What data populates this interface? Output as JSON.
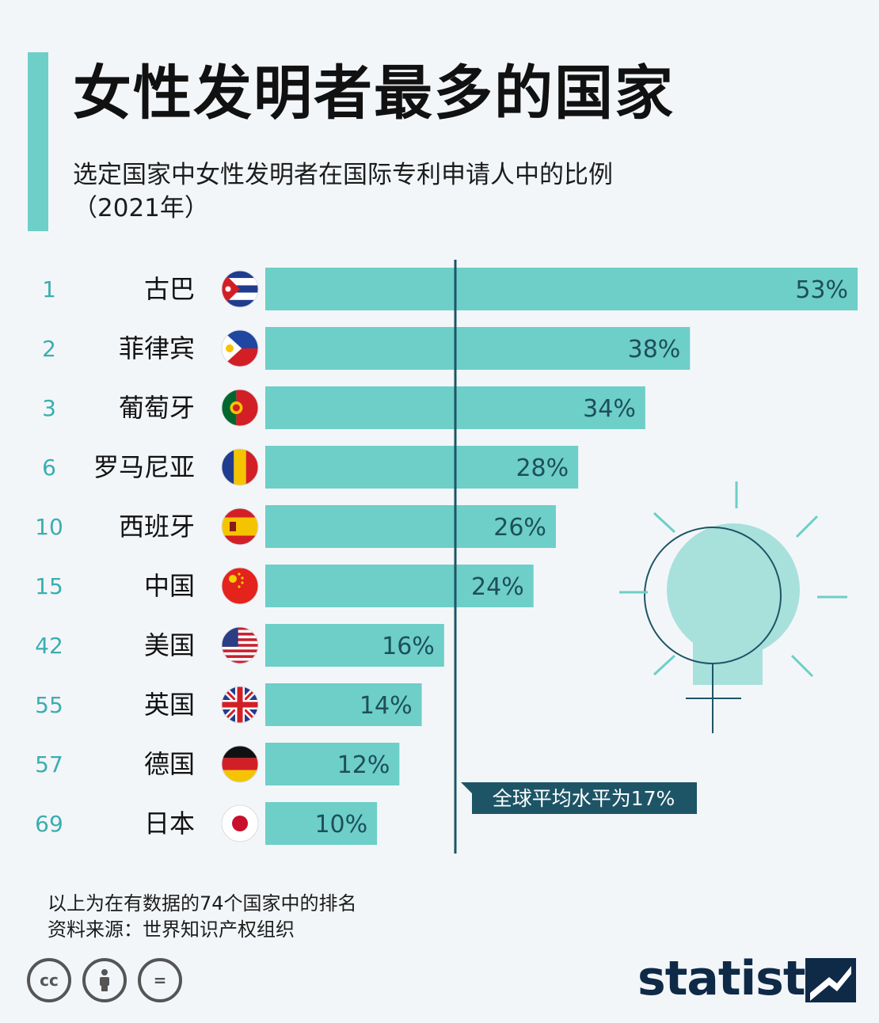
{
  "title": "女性发明者最多的国家",
  "subtitle_line1": "选定国家中女性发明者在国际专利申请人中的比例",
  "subtitle_line2": "（2021年）",
  "chart_data": {
    "type": "bar",
    "orientation": "horizontal",
    "value_format": "percent",
    "categories": [
      "古巴",
      "菲律宾",
      "葡萄牙",
      "罗马尼亚",
      "西班牙",
      "中国",
      "美国",
      "英国",
      "德国",
      "日本"
    ],
    "ranks": [
      "1",
      "2",
      "3",
      "6",
      "10",
      "15",
      "42",
      "55",
      "57",
      "69"
    ],
    "values": [
      53,
      38,
      34,
      28,
      26,
      24,
      16,
      14,
      12,
      10
    ],
    "value_labels": [
      "53%",
      "38%",
      "34%",
      "28%",
      "26%",
      "24%",
      "16%",
      "14%",
      "12%",
      "10%"
    ],
    "flags": [
      "cuba-flag",
      "philippines-flag",
      "portugal-flag",
      "romania-flag",
      "spain-flag",
      "china-flag",
      "usa-flag",
      "uk-flag",
      "germany-flag",
      "japan-flag"
    ],
    "xlim": [
      0,
      53
    ],
    "reference_line": {
      "value": 17,
      "label": "全球平均水平为17%"
    },
    "bar_color": "#6dcfc8",
    "reference_color": "#1d5566"
  },
  "footnote_line1": "以上为在有数据的74个国家中的排名",
  "footnote_line2": "资料来源：世界知识产权组织",
  "license_icons": [
    "cc-icon",
    "by-icon",
    "nd-icon"
  ],
  "license_labels": [
    "cc",
    "",
    "="
  ],
  "brand": "statista",
  "brand_color": "#0f2a47"
}
